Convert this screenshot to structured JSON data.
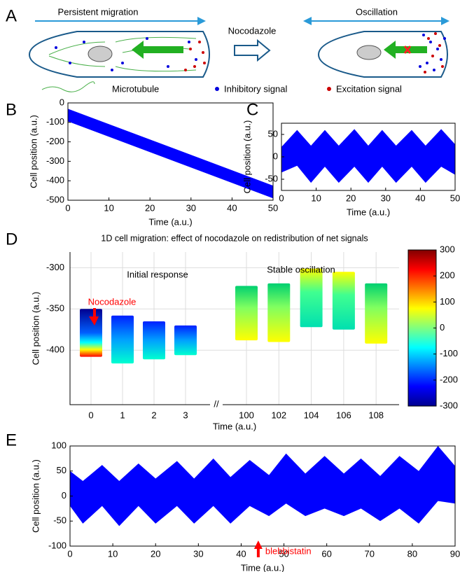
{
  "panels": [
    "A",
    "B",
    "C",
    "D",
    "E"
  ],
  "diagram": {
    "labels": {
      "left_title": "Persistent migration",
      "drug": "Nocodazole",
      "right_title": "Oscillation",
      "microtubule": "Microtubule",
      "inhibitory": "Inhibitory signal",
      "excitation": "Excitation signal"
    }
  },
  "chart_data": [
    {
      "type": "area",
      "xlabel": "Time (a.u.)",
      "ylabel": "Cell position (a.u.)",
      "color": "#0000ff",
      "x": [
        0,
        50
      ],
      "upper": [
        -30,
        -425
      ],
      "lower": [
        -95,
        -490
      ],
      "xlim": [
        0,
        50
      ],
      "ylim": [
        -500,
        0
      ],
      "xticks": [
        0,
        10,
        20,
        30,
        40,
        50
      ],
      "yticks": [
        0,
        -100,
        -200,
        -300,
        -400,
        -500
      ]
    },
    {
      "type": "area",
      "xlabel": "Time (a.u.)",
      "ylabel": "Cell position (a.u.)",
      "color": "#0000ff",
      "x": [
        0,
        4.5,
        8.5,
        12.5,
        16.5,
        21,
        25,
        29,
        33,
        37.5,
        41.5,
        46,
        50
      ],
      "upper": [
        22,
        60,
        25,
        60,
        25,
        62,
        25,
        60,
        25,
        60,
        25,
        62,
        28
      ],
      "lower": [
        -35,
        -20,
        -58,
        -22,
        -58,
        -22,
        -58,
        -22,
        -58,
        -22,
        -58,
        -22,
        -40
      ],
      "xlim": [
        0,
        50
      ],
      "ylim": [
        -75,
        75
      ],
      "xticks": [
        0,
        10,
        20,
        30,
        40,
        50
      ],
      "yticks": [
        -50,
        0,
        50
      ]
    },
    {
      "type": "range_bar",
      "title": "1D cell migration: effect of nocodazole on redistribution of net signals",
      "xlabel": "Time (a.u.)",
      "ylabel": "Cell position (a.u.)",
      "categories": [
        "0",
        "1",
        "2",
        "3",
        "100",
        "102",
        "104",
        "106",
        "108"
      ],
      "ranges": [
        [
          -350,
          -408
        ],
        [
          -358,
          -416
        ],
        [
          -365,
          -411
        ],
        [
          -370,
          -406
        ],
        [
          -322,
          -388
        ],
        [
          -319,
          -390
        ],
        [
          -301,
          -372
        ],
        [
          -305,
          -375
        ],
        [
          -319,
          -392
        ]
      ],
      "ylim": [
        -466,
        -281
      ],
      "yticks": [
        -300,
        -350,
        -400
      ],
      "grid": true,
      "axis_break": "//",
      "annotations": [
        "Initial response",
        "Stable oscillation",
        "Nocodazole"
      ],
      "colorbar": {
        "clim": [
          -300,
          300
        ],
        "ticks": [
          300,
          200,
          100,
          0,
          -100,
          -200,
          -300
        ]
      }
    },
    {
      "type": "area",
      "xlabel": "Time (a.u.)",
      "ylabel": "Cell position (a.u.)",
      "color": "#0000ff",
      "x": [
        0,
        3,
        7.5,
        11.5,
        16,
        20,
        25,
        29,
        33.5,
        37.5,
        42,
        46.5,
        50.5,
        55,
        59.5,
        64,
        68,
        72.5,
        77,
        81.5,
        86,
        90
      ],
      "upper": [
        50,
        30,
        62,
        30,
        65,
        35,
        70,
        35,
        75,
        38,
        72,
        42,
        85,
        45,
        80,
        45,
        75,
        40,
        80,
        50,
        100,
        60
      ],
      "lower": [
        -20,
        -55,
        -20,
        -60,
        -20,
        -55,
        -20,
        -55,
        -20,
        -55,
        -20,
        -40,
        -15,
        -40,
        -25,
        -40,
        -25,
        -50,
        -25,
        -55,
        -10,
        -15
      ],
      "xlim": [
        0,
        90
      ],
      "ylim": [
        -100,
        100
      ],
      "xticks": [
        0,
        10,
        20,
        30,
        40,
        50,
        60,
        70,
        80,
        90
      ],
      "yticks": [
        -100,
        -50,
        0,
        50,
        100
      ],
      "annotation": "blebbistatin",
      "annotation_x": 44
    }
  ]
}
